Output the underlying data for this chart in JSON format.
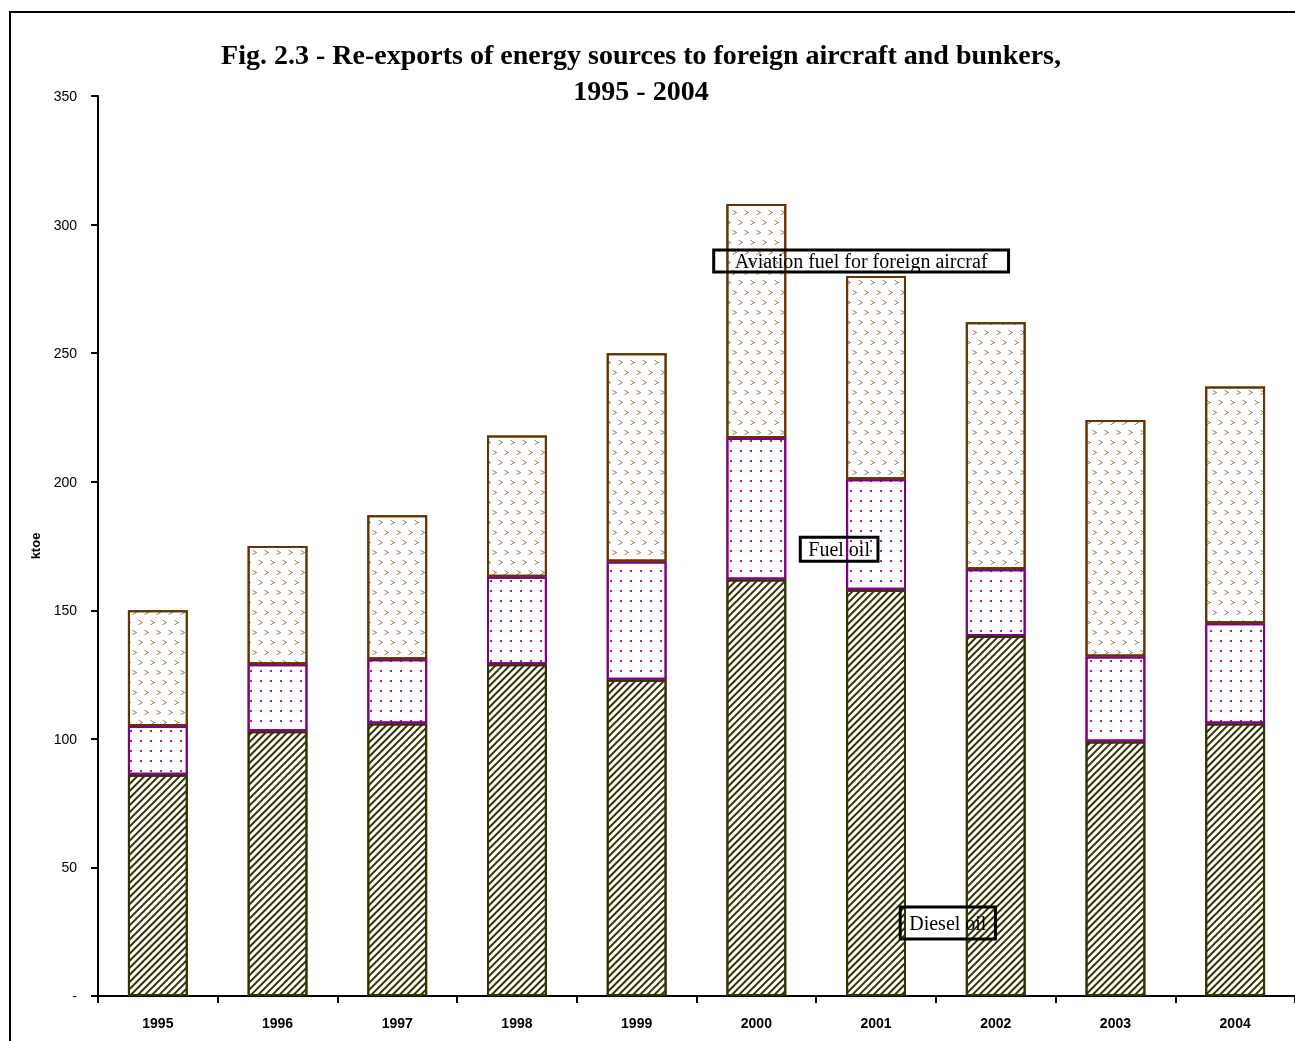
{
  "chart_data": {
    "type": "bar",
    "title": "Fig. 2.3 - Re-exports of energy sources to foreign aircraft and bunkers,\n1995 - 2004",
    "ylabel": "ktoe",
    "categories": [
      "1995",
      "1996",
      "1997",
      "1998",
      "1999",
      "2000",
      "2001",
      "2002",
      "2003",
      "2004"
    ],
    "stacked": true,
    "series": [
      {
        "name": "Diesel oil",
        "color": "#333300",
        "values": [
          86,
          103,
          106,
          129,
          123,
          162,
          158,
          140,
          99,
          106
        ]
      },
      {
        "name": "Fuel oil",
        "color": "#800080",
        "values": [
          19,
          26,
          25,
          34,
          46,
          55,
          43,
          26,
          33,
          39
        ]
      },
      {
        "name": "Aviation fuel for foreign aircraf",
        "color": "#663300",
        "values": [
          45,
          46,
          56,
          55,
          81,
          91,
          79,
          96,
          92,
          92
        ]
      }
    ],
    "ylim": [
      0,
      350
    ],
    "yticks": [
      {
        "value": 0,
        "label": "-"
      },
      50,
      100,
      150,
      200,
      250,
      300,
      350
    ],
    "grid": false,
    "legend": false
  }
}
